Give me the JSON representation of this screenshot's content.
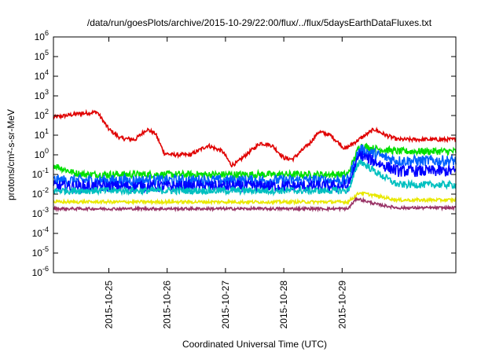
{
  "chart_data": {
    "type": "line",
    "title": "/data/run/goesPlots/archive/2015-10-29/22:00/flux/../flux/5daysEarthDataFluxes.txt",
    "xlabel": "Coordinated Universal Time (UTC)",
    "ylabel": "protons/cm²-s-sr-MeV",
    "y_scale": "log",
    "ylim": [
      1e-06,
      1000000.0
    ],
    "y_ticks": [
      {
        "value": 1e-06,
        "base": "10",
        "exp": "-6"
      },
      {
        "value": 1e-05,
        "base": "10",
        "exp": "-5"
      },
      {
        "value": 0.0001,
        "base": "10",
        "exp": "-4"
      },
      {
        "value": 0.001,
        "base": "10",
        "exp": "-3"
      },
      {
        "value": 0.01,
        "base": "10",
        "exp": "-2"
      },
      {
        "value": 0.1,
        "base": "10",
        "exp": "-1"
      },
      {
        "value": 1,
        "base": "10",
        "exp": "0"
      },
      {
        "value": 10,
        "base": "10",
        "exp": "1"
      },
      {
        "value": 100,
        "base": "10",
        "exp": "2"
      },
      {
        "value": 1000,
        "base": "10",
        "exp": "3"
      },
      {
        "value": 10000,
        "base": "10",
        "exp": "4"
      },
      {
        "value": 100000,
        "base": "10",
        "exp": "5"
      },
      {
        "value": 1000000,
        "base": "10",
        "exp": "6"
      }
    ],
    "x_range_days": [
      -0.95,
      5.95
    ],
    "x_ticks": [
      {
        "day": 0,
        "label": "2015-10-25"
      },
      {
        "day": 1,
        "label": "2015-10-26"
      },
      {
        "day": 2,
        "label": "2015-10-27"
      },
      {
        "day": 3,
        "label": "2015-10-28"
      },
      {
        "day": 4,
        "label": "2015-10-29"
      }
    ],
    "grid": false,
    "series": [
      {
        "color": "#e00000",
        "noise": 0.1,
        "points": [
          [
            -0.95,
            80
          ],
          [
            -0.55,
            120
          ],
          [
            -0.2,
            150
          ],
          [
            -0.15,
            90
          ],
          [
            0.0,
            20
          ],
          [
            0.2,
            7
          ],
          [
            0.45,
            6
          ],
          [
            0.65,
            20
          ],
          [
            0.8,
            12
          ],
          [
            0.95,
            1.2
          ],
          [
            1.1,
            1.0
          ],
          [
            1.4,
            1.0
          ],
          [
            1.7,
            3
          ],
          [
            1.95,
            1.5
          ],
          [
            2.1,
            0.3
          ],
          [
            2.2,
            0.4
          ],
          [
            2.35,
            1.0
          ],
          [
            2.6,
            4
          ],
          [
            2.8,
            3
          ],
          [
            3.0,
            0.7
          ],
          [
            3.15,
            0.6
          ],
          [
            3.45,
            4
          ],
          [
            3.6,
            15
          ],
          [
            3.8,
            10
          ],
          [
            4.05,
            2
          ],
          [
            4.2,
            4
          ],
          [
            4.55,
            20
          ],
          [
            4.75,
            10
          ],
          [
            4.95,
            6
          ]
        ]
      },
      {
        "color": "#00e000",
        "noise": 0.18,
        "points": [
          [
            -0.95,
            0.3
          ],
          [
            -0.6,
            0.12
          ],
          [
            -0.4,
            0.1
          ],
          [
            4.1,
            0.1
          ],
          [
            4.3,
            3.0
          ],
          [
            4.5,
            2.2
          ],
          [
            4.95,
            1.5
          ]
        ]
      },
      {
        "color": "#0060ff",
        "noise": 0.28,
        "points": [
          [
            -0.95,
            0.05
          ],
          [
            4.1,
            0.05
          ],
          [
            4.3,
            2.0
          ],
          [
            4.6,
            1.0
          ],
          [
            4.95,
            0.5
          ]
        ]
      },
      {
        "color": "#0000ff",
        "noise": 0.3,
        "points": [
          [
            -0.95,
            0.025
          ],
          [
            4.1,
            0.025
          ],
          [
            4.3,
            1.0
          ],
          [
            4.6,
            0.4
          ],
          [
            4.95,
            0.15
          ]
        ]
      },
      {
        "color": "#00c0c0",
        "noise": 0.18,
        "points": [
          [
            -0.95,
            0.015
          ],
          [
            4.1,
            0.015
          ],
          [
            4.3,
            0.5
          ],
          [
            4.6,
            0.12
          ],
          [
            4.95,
            0.03
          ]
        ]
      },
      {
        "color": "#e8e800",
        "noise": 0.08,
        "points": [
          [
            -0.95,
            0.004
          ],
          [
            4.1,
            0.004
          ],
          [
            4.3,
            0.012
          ],
          [
            4.6,
            0.008
          ],
          [
            4.95,
            0.005
          ]
        ]
      },
      {
        "color": "#993366",
        "noise": 0.07,
        "points": [
          [
            -0.95,
            0.0018
          ],
          [
            4.1,
            0.0018
          ],
          [
            4.25,
            0.006
          ],
          [
            4.6,
            0.003
          ],
          [
            4.95,
            0.002
          ]
        ]
      }
    ]
  }
}
